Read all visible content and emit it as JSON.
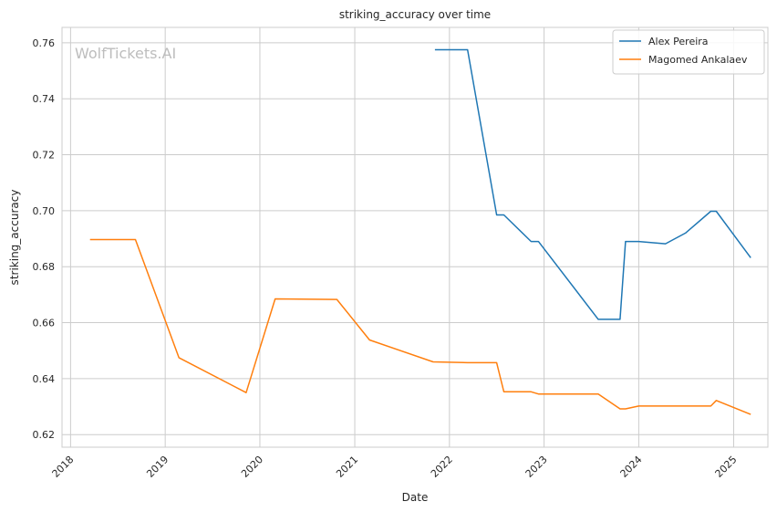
{
  "watermark": "WolfTickets.AI",
  "colors": {
    "alex": "#1f77b4",
    "magomed": "#ff7f0e",
    "grid": "#cccccc",
    "frame": "#cccccc"
  },
  "chart_data": {
    "type": "line",
    "title": "striking_accuracy over time",
    "xlabel": "Date",
    "ylabel": "striking_accuracy",
    "xlim": [
      "2017-11-29",
      "2025-05-13"
    ],
    "ylim": [
      0.6155,
      0.7655
    ],
    "x_ticks": [
      "2018",
      "2019",
      "2020",
      "2021",
      "2022",
      "2023",
      "2024",
      "2025"
    ],
    "y_ticks": [
      "0.62",
      "0.64",
      "0.66",
      "0.68",
      "0.70",
      "0.72",
      "0.74",
      "0.76"
    ],
    "grid": true,
    "legend_position": "top-right",
    "series": [
      {
        "name": "Alex Pereira",
        "color": "#1f77b4",
        "points": [
          [
            "2021-11-06",
            0.7575
          ],
          [
            "2022-03-12",
            0.7575
          ],
          [
            "2022-07-02",
            0.6985
          ],
          [
            "2022-07-30",
            0.6985
          ],
          [
            "2022-11-12",
            0.689
          ],
          [
            "2022-12-10",
            0.689
          ],
          [
            "2023-07-29",
            0.6612
          ],
          [
            "2023-10-21",
            0.6612
          ],
          [
            "2023-11-11",
            0.689
          ],
          [
            "2024-01-01",
            0.689
          ],
          [
            "2024-04-13",
            0.6882
          ],
          [
            "2024-06-29",
            0.692
          ],
          [
            "2024-10-05",
            0.6998
          ],
          [
            "2024-10-26",
            0.6998
          ],
          [
            "2025-03-08",
            0.6832
          ]
        ]
      },
      {
        "name": "Magomed Ankalaev",
        "color": "#ff7f0e",
        "points": [
          [
            "2018-03-17",
            0.6897
          ],
          [
            "2018-09-08",
            0.6897
          ],
          [
            "2019-02-23",
            0.6475
          ],
          [
            "2019-11-09",
            0.635
          ],
          [
            "2020-02-29",
            0.6685
          ],
          [
            "2020-10-24",
            0.6683
          ],
          [
            "2021-02-27",
            0.6538
          ],
          [
            "2021-10-30",
            0.646
          ],
          [
            "2022-03-12",
            0.6457
          ],
          [
            "2022-07-02",
            0.6457
          ],
          [
            "2022-07-30",
            0.6353
          ],
          [
            "2022-11-12",
            0.6353
          ],
          [
            "2022-12-10",
            0.6345
          ],
          [
            "2023-07-29",
            0.6345
          ],
          [
            "2023-10-21",
            0.6292
          ],
          [
            "2023-11-11",
            0.6292
          ],
          [
            "2024-01-01",
            0.6302
          ],
          [
            "2024-10-05",
            0.6302
          ],
          [
            "2024-10-26",
            0.6322
          ],
          [
            "2025-03-08",
            0.6272
          ]
        ]
      }
    ]
  }
}
